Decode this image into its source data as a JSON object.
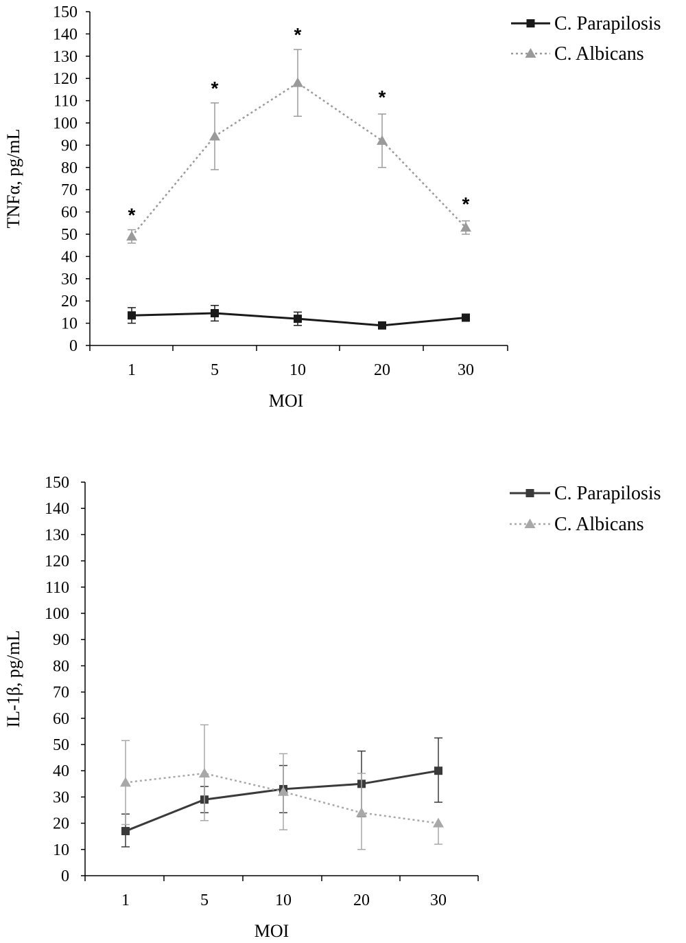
{
  "chart_data": [
    {
      "type": "line",
      "ylabel": "TNFα, pg/mL",
      "xlabel": "MOI",
      "categories": [
        "1",
        "5",
        "10",
        "20",
        "30"
      ],
      "ylim": [
        0,
        150
      ],
      "yticks": [
        "0",
        "10",
        "20",
        "30",
        "40",
        "50",
        "60",
        "70",
        "80",
        "90",
        "100",
        "110",
        "120",
        "130",
        "140",
        "150"
      ],
      "legend_position": "top-right",
      "series": [
        {
          "name": "C. Parapilosis",
          "marker": "square",
          "style": "solid",
          "color": "#1a1a1a",
          "values": [
            13.5,
            14.5,
            12,
            9,
            12.5
          ],
          "err_high": [
            3.5,
            3.5,
            3,
            1,
            1
          ],
          "err_low": [
            3.5,
            3.5,
            3,
            1,
            1
          ]
        },
        {
          "name": "C. Albicans",
          "marker": "triangle",
          "style": "dotted",
          "color": "#9a9a9a",
          "values": [
            49,
            94,
            118,
            92,
            53
          ],
          "err_high": [
            3,
            15,
            15,
            12,
            3
          ],
          "err_low": [
            3,
            15,
            15,
            12,
            3
          ]
        }
      ],
      "annotations": [
        {
          "x": "1",
          "text": "*",
          "y": 60
        },
        {
          "x": "5",
          "text": "*",
          "y": 117
        },
        {
          "x": "10",
          "text": "*",
          "y": 141
        },
        {
          "x": "20",
          "text": "*",
          "y": 113
        },
        {
          "x": "30",
          "text": "*",
          "y": 65
        }
      ]
    },
    {
      "type": "line",
      "ylabel": "IL-1β, pg/mL",
      "xlabel": "MOI",
      "categories": [
        "1",
        "5",
        "10",
        "20",
        "30"
      ],
      "ylim": [
        0,
        150
      ],
      "yticks": [
        "0",
        "10",
        "20",
        "30",
        "40",
        "50",
        "60",
        "70",
        "80",
        "90",
        "100",
        "110",
        "120",
        "130",
        "140",
        "150"
      ],
      "legend_position": "top-right",
      "series": [
        {
          "name": "C. Parapilosis",
          "marker": "square",
          "style": "solid",
          "color": "#3a3a3a",
          "values": [
            17,
            29,
            33,
            35,
            40
          ],
          "err_high": [
            6.5,
            5,
            9,
            12.5,
            12.5
          ],
          "err_low": [
            6,
            5,
            9,
            12.5,
            12
          ]
        },
        {
          "name": "C. Albicans",
          "marker": "triangle",
          "style": "dotted",
          "color": "#a8a8a8",
          "values": [
            35.5,
            39,
            32,
            24,
            20
          ],
          "err_high": [
            16,
            18.5,
            14.5,
            15,
            0
          ],
          "err_low": [
            16,
            18,
            14.5,
            14,
            8
          ]
        }
      ]
    }
  ]
}
